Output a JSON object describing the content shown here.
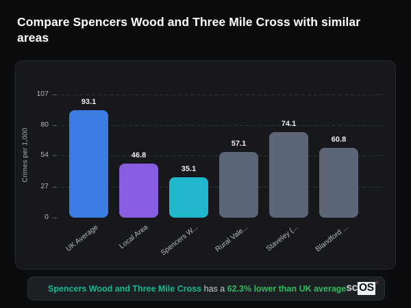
{
  "title": "Compare Spencers Wood and Three Mile Cross with similar areas",
  "chart_data": {
    "type": "bar",
    "title": "",
    "categories": [
      "UK Average",
      "Local Area",
      "Spencers W...",
      "Rural Vale...",
      "Staveley (...",
      "Blandford ..."
    ],
    "values": [
      93.1,
      46.8,
      35.1,
      57.1,
      74.1,
      60.8
    ],
    "value_labels": [
      "93.1",
      "46.8",
      "35.1",
      "57.1",
      "74.1",
      "60.8"
    ],
    "bar_colors": [
      "#3b7de2",
      "#8a5ce0",
      "#21b7ca",
      "#5c6678",
      "#5c6678",
      "#5c6678"
    ],
    "xlabel": "",
    "ylabel": "Crimes per 1,000",
    "yticks": [
      0,
      27,
      54,
      80,
      107
    ],
    "ylim": [
      0,
      107
    ],
    "grid": "horizontal-dashed",
    "legend": null
  },
  "annotation": {
    "subject": "Spencers Wood and Three Mile Cross",
    "connector": " has a ",
    "stat": "62.3% lower than UK average",
    "subject_color": "#14b98c",
    "stat_color": "#2fbd5d"
  },
  "logo": {
    "prefix": "sc",
    "box": "OS",
    "registered": "®"
  },
  "colors": {
    "page_bg": "#0b0c0e",
    "panel_bg": "#16181c",
    "panel_border": "#26292f",
    "grid_line": "#30343c",
    "tick_text": "#b6bac0",
    "value_text": "#edeff1",
    "title_text": "#ffffff"
  }
}
